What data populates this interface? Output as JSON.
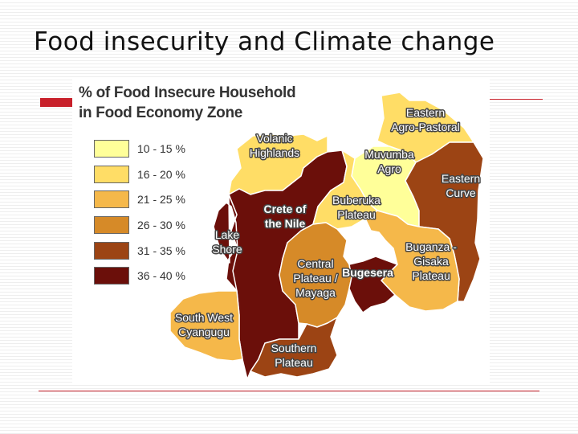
{
  "title": "Food insecurity and Climate change",
  "colors": {
    "accent": "#c8202a",
    "background_stripe": "#eeeeee",
    "outline": "#ffffff"
  },
  "legend": {
    "title_line1": "% of Food Insecure Household",
    "title_line2": "in Food Economy Zone",
    "items": [
      {
        "label": "10 - 15 %",
        "color": "#ffff99"
      },
      {
        "label": "16 - 20 %",
        "color": "#ffdd66"
      },
      {
        "label": "21 - 25 %",
        "color": "#f5b84a"
      },
      {
        "label": "26 - 30 %",
        "color": "#d68a28"
      },
      {
        "label": "31 - 35 %",
        "color": "#9c4414"
      },
      {
        "label": "36 - 40 %",
        "color": "#6b0f0a"
      }
    ]
  },
  "zones": [
    {
      "id": "eastern-agro-pastoral",
      "lines": [
        "Eastern",
        "Agro-Pastoral"
      ],
      "class": "16 - 20 %",
      "color": "#ffdd66"
    },
    {
      "id": "volanic-highlands",
      "lines": [
        "Volanic",
        "Highlands"
      ],
      "class": "16 - 20 %",
      "color": "#ffdd66"
    },
    {
      "id": "muvumba-agro",
      "lines": [
        "Muvumba",
        "Agro"
      ],
      "class": "10 - 15 %",
      "color": "#ffff99"
    },
    {
      "id": "eastern-curve",
      "lines": [
        "Eastern",
        "Curve"
      ],
      "class": "31 - 35 %",
      "color": "#9c4414"
    },
    {
      "id": "crete-of-the-nile",
      "lines": [
        "Crete of",
        "the Nile"
      ],
      "class": "36 - 40 %",
      "color": "#6b0f0a"
    },
    {
      "id": "buberuka-plateau",
      "lines": [
        "Buberuka",
        "Plateau"
      ],
      "class": "16 - 20 %",
      "color": "#ffdd66"
    },
    {
      "id": "lake-shore",
      "lines": [
        "Lake",
        "Shore"
      ],
      "class": "36 - 40 %",
      "color": "#6b0f0a"
    },
    {
      "id": "buganza-gisaka-plateau",
      "lines": [
        "Buganza -",
        "Gisaka",
        "Plateau"
      ],
      "class": "21 - 25 %",
      "color": "#f5b84a"
    },
    {
      "id": "central-plateau-mayaga",
      "lines": [
        "Central",
        "Plateau /",
        "Mayaga"
      ],
      "class": "26 - 30 %",
      "color": "#d68a28"
    },
    {
      "id": "bugesera",
      "lines": [
        "Bugesera"
      ],
      "class": "36 - 40 %",
      "color": "#6b0f0a"
    },
    {
      "id": "south-west-cyangugu",
      "lines": [
        "South West",
        "Cyangugu"
      ],
      "class": "21 - 25 %",
      "color": "#f5b84a"
    },
    {
      "id": "southern-plateau",
      "lines": [
        "Southern",
        "Plateau"
      ],
      "class": "31 - 35 %",
      "color": "#9c4414"
    }
  ]
}
